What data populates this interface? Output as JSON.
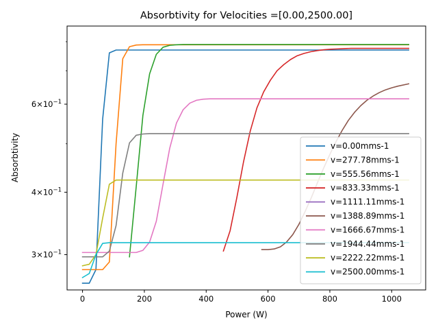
{
  "chart_data": {
    "type": "line",
    "title": "Absorbtivity for Velocities =[0.00,2500.00]",
    "xlabel": "Power (W)",
    "ylabel": "Absorbtivity",
    "xlim": [
      -50,
      1110
    ],
    "ylim": [
      0.255,
      0.86
    ],
    "yscale": "log",
    "grid": false,
    "legend_position": "lower-right",
    "x_ticks": [
      {
        "value": 0,
        "label": "0"
      },
      {
        "value": 200,
        "label": "200"
      },
      {
        "value": 400,
        "label": "400"
      },
      {
        "value": 600,
        "label": "600"
      },
      {
        "value": 800,
        "label": "800"
      },
      {
        "value": 1000,
        "label": "1000"
      }
    ],
    "y_major_ticks": [
      {
        "value": 0.3,
        "base": "3",
        "exp": "−1"
      },
      {
        "value": 0.4,
        "base": "4",
        "exp": "−1"
      },
      {
        "value": 0.6,
        "base": "6",
        "exp": "−1"
      }
    ],
    "y_minor_ticks": [
      0.5,
      0.7,
      0.8
    ],
    "tick_times": "×10",
    "series": [
      {
        "name": "v=0.00mms-1",
        "color": "#1f77b4",
        "x": [
          0,
          21.7,
          43.4,
          65.1,
          86.8,
          108.5,
          130.2,
          1055
        ],
        "y": [
          0.263,
          0.263,
          0.28,
          0.56,
          0.76,
          0.77,
          0.77,
          0.77
        ]
      },
      {
        "name": "v=277.78mms-1",
        "color": "#ff7f0e",
        "x": [
          0,
          21.7,
          43.4,
          65.1,
          86.8,
          108.5,
          130.2,
          151.9,
          173.6,
          195.3,
          1055
        ],
        "y": [
          0.28,
          0.28,
          0.28,
          0.28,
          0.29,
          0.5,
          0.74,
          0.782,
          0.788,
          0.789,
          0.789
        ]
      },
      {
        "name": "v=555.56mms-1",
        "color": "#2ca02c",
        "x": [
          151.9,
          173.6,
          195.3,
          217,
          238.7,
          260.4,
          282.1,
          303.8,
          325.5,
          347.2,
          1055
        ],
        "y": [
          0.297,
          0.41,
          0.57,
          0.69,
          0.755,
          0.78,
          0.787,
          0.789,
          0.79,
          0.79,
          0.79
        ]
      },
      {
        "name": "v=833.33mms-1",
        "color": "#d62728",
        "x": [
          455.7,
          477.4,
          499.1,
          520.8,
          542.5,
          564.2,
          585.9,
          607.6,
          629.3,
          651,
          672.7,
          694.4,
          716.1,
          737.8,
          759.5,
          781.2,
          802.9,
          824.6,
          846.3,
          868,
          1055
        ],
        "y": [
          0.305,
          0.335,
          0.39,
          0.46,
          0.53,
          0.59,
          0.635,
          0.67,
          0.7,
          0.72,
          0.737,
          0.75,
          0.758,
          0.764,
          0.768,
          0.771,
          0.773,
          0.774,
          0.775,
          0.776,
          0.776
        ]
      },
      {
        "name": "v=1111.11mms-1",
        "color": "#9467bd",
        "x": [],
        "y": []
      },
      {
        "name": "v=1388.89mms-1",
        "color": "#8c564b",
        "x": [
          580,
          600,
          620,
          640,
          660,
          680,
          700,
          720,
          740,
          760,
          780,
          800,
          820,
          840,
          860,
          880,
          900,
          920,
          940,
          960,
          980,
          1000,
          1020,
          1055
        ],
        "y": [
          0.307,
          0.307,
          0.308,
          0.311,
          0.318,
          0.329,
          0.345,
          0.366,
          0.39,
          0.418,
          0.447,
          0.476,
          0.505,
          0.532,
          0.557,
          0.578,
          0.596,
          0.611,
          0.623,
          0.633,
          0.641,
          0.647,
          0.652,
          0.659
        ]
      },
      {
        "name": "v=1666.67mms-1",
        "color": "#e377c2",
        "x": [
          0,
          21.7,
          43.4,
          65.1,
          86.8,
          108.5,
          130.2,
          151.9,
          173.6,
          195.3,
          217,
          238.7,
          260.4,
          282.1,
          303.8,
          325.5,
          347.2,
          368.9,
          390.6,
          412.3,
          434,
          1055
        ],
        "y": [
          0.303,
          0.303,
          0.303,
          0.303,
          0.303,
          0.303,
          0.303,
          0.303,
          0.303,
          0.306,
          0.318,
          0.35,
          0.415,
          0.49,
          0.55,
          0.585,
          0.603,
          0.611,
          0.614,
          0.615,
          0.615,
          0.615
        ]
      },
      {
        "name": "v=1944.44mms-1",
        "color": "#7f7f7f",
        "x": [
          0,
          21.7,
          43.4,
          65.1,
          86.8,
          108.5,
          130.2,
          151.9,
          173.6,
          195.3,
          217,
          238.7,
          1055
        ],
        "y": [
          0.297,
          0.297,
          0.297,
          0.297,
          0.305,
          0.343,
          0.437,
          0.502,
          0.52,
          0.523,
          0.524,
          0.524,
          0.524
        ]
      },
      {
        "name": "v=2222.22mms-1",
        "color": "#bcbd22",
        "x": [
          0,
          21.7,
          43.4,
          65.1,
          86.8,
          108.5,
          130.2,
          1055
        ],
        "y": [
          0.285,
          0.287,
          0.3,
          0.355,
          0.415,
          0.423,
          0.423,
          0.423
        ]
      },
      {
        "name": "v=2500.00mms-1",
        "color": "#17becf",
        "x": [
          0,
          21.7,
          43.4,
          65.1,
          86.8,
          1055
        ],
        "y": [
          0.27,
          0.275,
          0.3,
          0.316,
          0.317,
          0.317
        ]
      }
    ]
  }
}
